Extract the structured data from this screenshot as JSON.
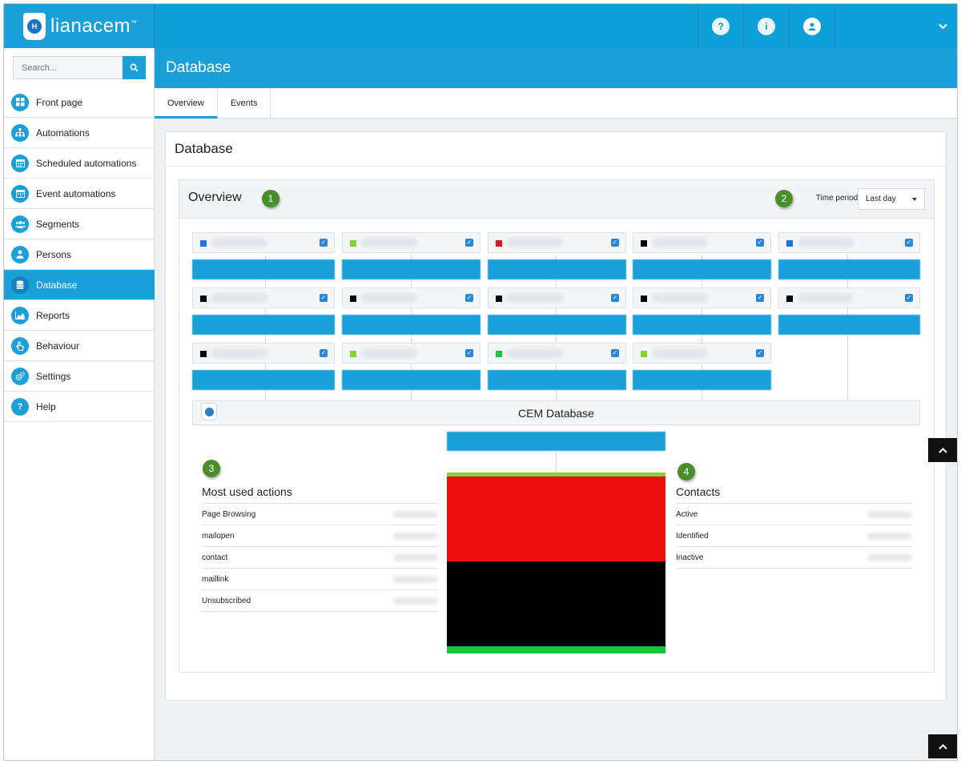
{
  "brand": {
    "name": "lianacem",
    "tm": "™",
    "logo_letter": "H"
  },
  "topbar": {
    "help_icon": "question-circle-icon",
    "info_icon": "info-circle-icon",
    "user_icon": "user-circle-icon",
    "menu_icon": "chevron-down-icon"
  },
  "search": {
    "placeholder": "Search...",
    "icon": "search-icon"
  },
  "sidebar": {
    "items": [
      {
        "label": "Front page",
        "icon": "dashboard-icon"
      },
      {
        "label": "Automations",
        "icon": "sitemap-icon"
      },
      {
        "label": "Scheduled automations",
        "icon": "calendar-icon"
      },
      {
        "label": "Event automations",
        "icon": "calendar-event-icon"
      },
      {
        "label": "Segments",
        "icon": "users-group-icon"
      },
      {
        "label": "Persons",
        "icon": "person-icon"
      },
      {
        "label": "Database",
        "icon": "database-icon",
        "active": true
      },
      {
        "label": "Reports",
        "icon": "area-chart-icon"
      },
      {
        "label": "Behaviour",
        "icon": "hand-pointer-icon"
      },
      {
        "label": "Settings",
        "icon": "cogs-icon"
      },
      {
        "label": "Help",
        "icon": "question-icon"
      }
    ]
  },
  "page": {
    "title": "Database"
  },
  "tabs": [
    {
      "label": "Overview",
      "active": true
    },
    {
      "label": "Events"
    }
  ],
  "panel": {
    "title": "Database"
  },
  "overview": {
    "title": "Overview",
    "time_period_label": "Time period:",
    "time_period_value": "Last day"
  },
  "annotations": [
    "1",
    "2",
    "3",
    "4"
  ],
  "segments": [
    {
      "color": "#1c73e8",
      "checked": true
    },
    {
      "color": "#7fd633",
      "checked": true
    },
    {
      "color": "#e8141b",
      "checked": true
    },
    {
      "color": "#000000",
      "checked": true
    },
    {
      "color": "#1c73e8",
      "checked": true
    },
    {
      "color": "#000000",
      "checked": true
    },
    {
      "color": "#000000",
      "checked": true
    },
    {
      "color": "#000000",
      "checked": true
    },
    {
      "color": "#000000",
      "checked": true
    },
    {
      "color": "#000000",
      "checked": true
    },
    {
      "color": "#000000",
      "checked": true
    },
    {
      "color": "#7fd633",
      "checked": true
    },
    {
      "color": "#1cc63b",
      "checked": true
    },
    {
      "color": "#7fd633",
      "checked": true
    }
  ],
  "database": {
    "label": "CEM Database"
  },
  "most_used_actions": {
    "title": "Most used actions",
    "rows": [
      "Page Browsing",
      "mailopen",
      "contact",
      "maillink",
      "Unsubscribed"
    ]
  },
  "contacts": {
    "title": "Contacts",
    "rows": [
      "Active",
      "Identified",
      "Inactive"
    ]
  },
  "stack_colors": [
    "#7ed63a",
    "#ee0e0e",
    "#000000",
    "#17c53a"
  ],
  "stack_shares": [
    0.02,
    0.47,
    0.47,
    0.04
  ],
  "accent": "#1a9fd9",
  "scroll_icon": "chevron-up-icon"
}
